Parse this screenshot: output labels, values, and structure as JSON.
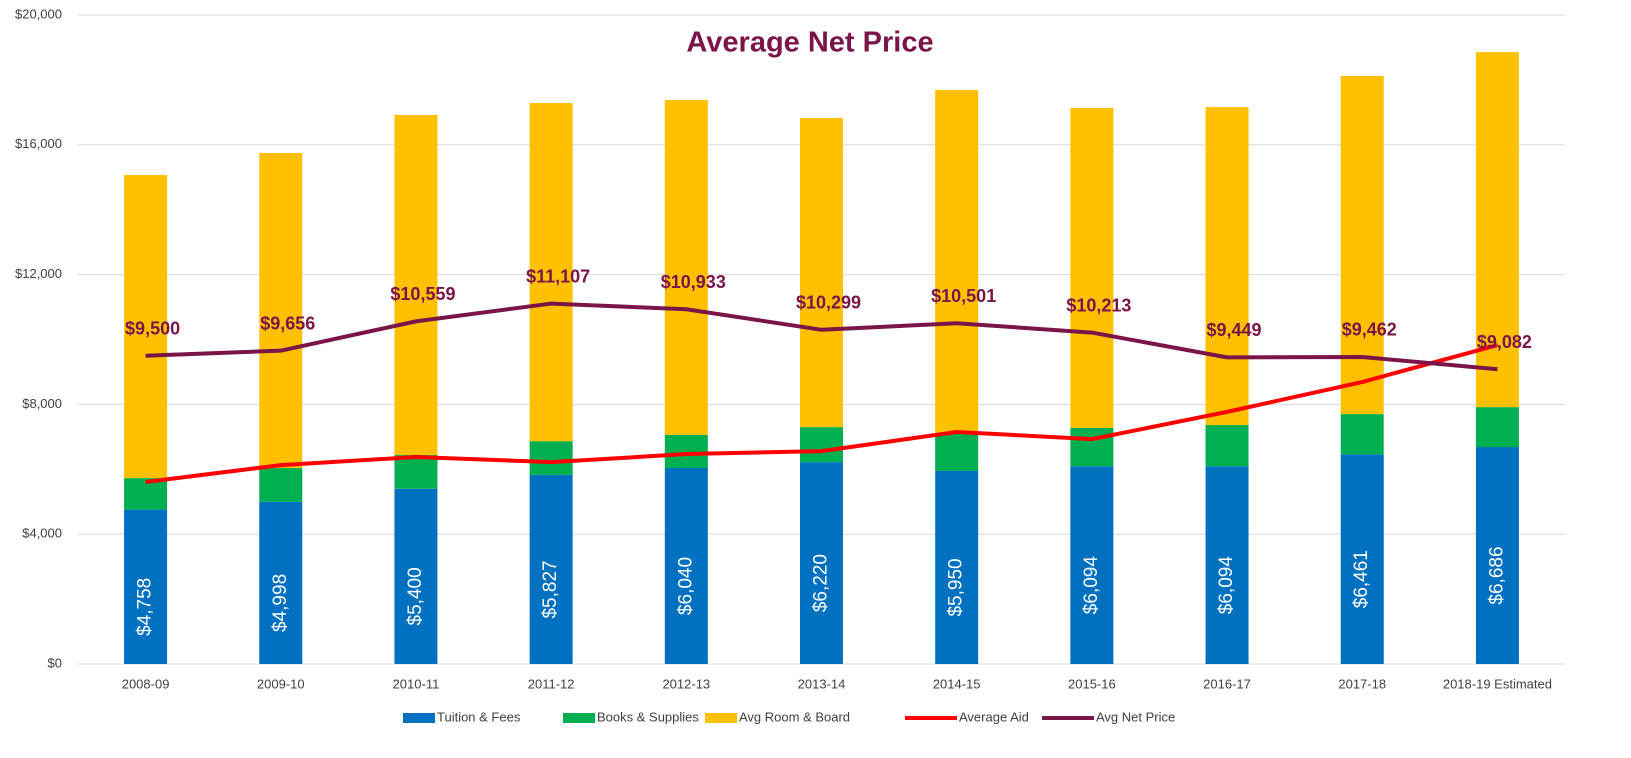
{
  "chart_data": {
    "type": "stacked-bar-line",
    "title": "Average Net Price",
    "categories": [
      "2008-09",
      "2009-10",
      "2010-11",
      "2011-12",
      "2012-13",
      "2013-14",
      "2014-15",
      "2015-16",
      "2016-17",
      "2017-18",
      "2018-19 Estimated"
    ],
    "series": [
      {
        "name": "Tuition & Fees",
        "kind": "bar",
        "color": "#0070c0",
        "values": [
          4758,
          4998,
          5400,
          5827,
          6040,
          6220,
          5950,
          6094,
          6094,
          6461,
          6686
        ],
        "value_labels": [
          "$4,758",
          "$4,998",
          "$5,400",
          "$5,827",
          "$6,040",
          "$6,220",
          "$5,950",
          "$6,094",
          "$6,094",
          "$6,461",
          "$6,686"
        ]
      },
      {
        "name": "Books & Supplies",
        "kind": "bar",
        "color": "#00b050",
        "values": [
          970,
          1040,
          1040,
          1040,
          1020,
          1080,
          1140,
          1180,
          1270,
          1240,
          1230
        ]
      },
      {
        "name": "Avg Room & Board",
        "kind": "bar",
        "color": "#ffc000",
        "values": [
          9340,
          9710,
          10480,
          10420,
          10320,
          9530,
          10600,
          9860,
          9800,
          10420,
          10940
        ]
      },
      {
        "name": "Average Aid",
        "kind": "line",
        "color": "#ff0000",
        "values": [
          5610,
          6130,
          6380,
          6220,
          6470,
          6560,
          7150,
          6930,
          7770,
          8690,
          9830
        ]
      },
      {
        "name": "Avg Net Price",
        "kind": "line",
        "color": "#7b1448",
        "values": [
          9500,
          9656,
          10559,
          11107,
          10933,
          10299,
          10501,
          10213,
          9449,
          9462,
          9082
        ],
        "value_labels": [
          "$9,500",
          "$9,656",
          "$10,559",
          "$11,107",
          "$10,933",
          "$10,299",
          "$10,501",
          "$10,213",
          "$9,449",
          "$9,462",
          "$9,082"
        ]
      }
    ],
    "ylim": [
      0,
      20000
    ],
    "yticks": [
      {
        "value": 0,
        "label": "$0"
      },
      {
        "value": 4000,
        "label": "$4,000"
      },
      {
        "value": 8000,
        "label": "$8,000"
      },
      {
        "value": 12000,
        "label": "$12,000"
      },
      {
        "value": 16000,
        "label": "$16,000"
      },
      {
        "value": 20000,
        "label": "$20,000"
      }
    ],
    "grid": true,
    "legend": "bottom"
  }
}
